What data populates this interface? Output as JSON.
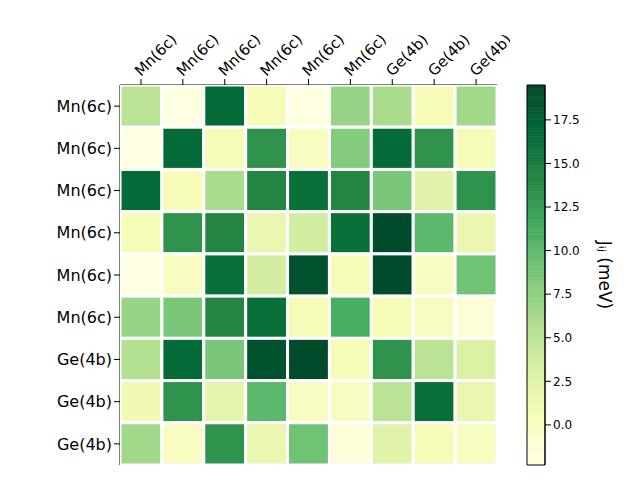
{
  "chart_data": {
    "type": "heatmap",
    "x_categories": [
      "Mn(6c)",
      "Mn(6c)",
      "Mn(6c)",
      "Mn(6c)",
      "Mn(6c)",
      "Mn(6c)",
      "Ge(4b)",
      "Ge(4b)",
      "Ge(4b)"
    ],
    "y_categories": [
      "Mn(6c)",
      "Mn(6c)",
      "Mn(6c)",
      "Mn(6c)",
      "Mn(6c)",
      "Mn(6c)",
      "Ge(4b)",
      "Ge(4b)",
      "Ge(4b)"
    ],
    "cells": [
      [
        5,
        -2,
        16.5,
        0.5,
        -2,
        7,
        6,
        0.5,
        6.5
      ],
      [
        -2,
        16.5,
        0.5,
        13,
        0,
        8,
        16.5,
        13,
        0.5
      ],
      [
        16.5,
        0.5,
        6,
        14,
        16,
        14,
        8.5,
        2.5,
        13
      ],
      [
        0.5,
        13,
        14,
        1.5,
        3.5,
        16,
        19,
        10,
        1.5
      ],
      [
        -2,
        0,
        16,
        3.5,
        18.5,
        0.5,
        19,
        0,
        9
      ],
      [
        7,
        8.5,
        14,
        16,
        0.5,
        11,
        0.5,
        0,
        -1.5
      ],
      [
        5.5,
        16.5,
        8.5,
        18.5,
        19,
        0.5,
        13,
        5,
        3
      ],
      [
        1,
        13,
        2,
        10,
        0,
        0,
        5,
        16,
        1.5
      ],
      [
        6.5,
        0,
        13,
        1.5,
        9,
        -1.5,
        2.5,
        0.5,
        0
      ]
    ],
    "colorbar": {
      "range": [
        -2.3,
        19.5
      ],
      "ticks": [
        {
          "value": 0,
          "label": "0.0"
        },
        {
          "value": 2.5,
          "label": "2.5"
        },
        {
          "value": 5,
          "label": "5.0"
        },
        {
          "value": 7.5,
          "label": "7.5"
        },
        {
          "value": 10,
          "label": "10.0"
        },
        {
          "value": 12.5,
          "label": "12.5"
        },
        {
          "value": 15,
          "label": "15.0"
        },
        {
          "value": 17.5,
          "label": "17.5"
        }
      ],
      "label": "Jᵢⱼ (meV)"
    }
  }
}
